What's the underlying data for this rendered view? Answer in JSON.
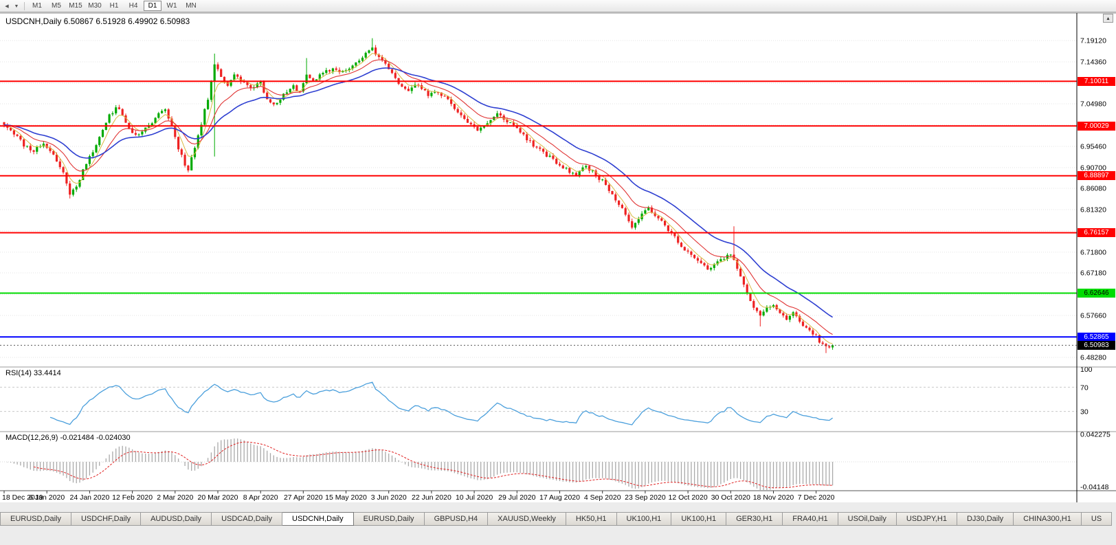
{
  "toolbar": {
    "timeframes": [
      "M1",
      "M5",
      "M15",
      "M30",
      "H1",
      "H4",
      "D1",
      "W1",
      "MN"
    ],
    "active": "D1",
    "icons": [
      {
        "name": "scroll-left-icon",
        "glyph": "◀"
      },
      {
        "name": "dropdown-icon",
        "glyph": "▼"
      }
    ]
  },
  "chart": {
    "symbol": "USDCNH",
    "period": "Daily",
    "title_line": "USDCNH,Daily 6.50867 6.51928 6.49902 6.50983",
    "ohlc": {
      "open": "6.50867",
      "high": "6.51928",
      "low": "6.49902",
      "close": "6.50983"
    }
  },
  "panels": {
    "rsi_label": "RSI(14) 33.4414",
    "macd_label": "MACD(12,26,9) -0.021484 -0.024030"
  },
  "misc": {
    "scroll_top_icon": "▴"
  },
  "chart_data": {
    "type": "candlestick",
    "symbol": "USDCNH",
    "timeframe": "Daily",
    "count": 253,
    "seed": 11,
    "noise": 0.009,
    "last_close": 6.50983,
    "current_price": 6.50983,
    "current_price_label": "6.50983",
    "anchors": [
      [
        0,
        7.005
      ],
      [
        3,
        6.985
      ],
      [
        6,
        6.958
      ],
      [
        9,
        6.945
      ],
      [
        12,
        6.962
      ],
      [
        15,
        6.935
      ],
      [
        18,
        6.895
      ],
      [
        20,
        6.85
      ],
      [
        22,
        6.862
      ],
      [
        24,
        6.905
      ],
      [
        26,
        6.932
      ],
      [
        29,
        6.972
      ],
      [
        32,
        7.022
      ],
      [
        34,
        7.043
      ],
      [
        36,
        7.028
      ],
      [
        38,
        6.992
      ],
      [
        41,
        6.978
      ],
      [
        44,
        7.0
      ],
      [
        47,
        7.028
      ],
      [
        49,
        7.038
      ],
      [
        51,
        7.0
      ],
      [
        53,
        6.952
      ],
      [
        55,
        6.915
      ],
      [
        56,
        6.905
      ],
      [
        58,
        6.952
      ],
      [
        60,
        7.005
      ],
      [
        62,
        7.062
      ],
      [
        64,
        7.142
      ],
      [
        66,
        7.112
      ],
      [
        68,
        7.088
      ],
      [
        70,
        7.118
      ],
      [
        72,
        7.102
      ],
      [
        75,
        7.088
      ],
      [
        78,
        7.096
      ],
      [
        80,
        7.062
      ],
      [
        82,
        7.046
      ],
      [
        85,
        7.068
      ],
      [
        88,
        7.088
      ],
      [
        90,
        7.076
      ],
      [
        92,
        7.118
      ],
      [
        94,
        7.098
      ],
      [
        97,
        7.118
      ],
      [
        100,
        7.128
      ],
      [
        103,
        7.122
      ],
      [
        106,
        7.135
      ],
      [
        109,
        7.152
      ],
      [
        111,
        7.168
      ],
      [
        112,
        7.175
      ],
      [
        114,
        7.152
      ],
      [
        117,
        7.13
      ],
      [
        120,
        7.098
      ],
      [
        123,
        7.082
      ],
      [
        126,
        7.092
      ],
      [
        129,
        7.068
      ],
      [
        132,
        7.076
      ],
      [
        135,
        7.06
      ],
      [
        138,
        7.032
      ],
      [
        141,
        7.008
      ],
      [
        144,
        6.992
      ],
      [
        147,
        7.005
      ],
      [
        150,
        7.026
      ],
      [
        153,
        7.012
      ],
      [
        156,
        6.995
      ],
      [
        159,
        6.972
      ],
      [
        162,
        6.95
      ],
      [
        165,
        6.935
      ],
      [
        168,
        6.918
      ],
      [
        171,
        6.902
      ],
      [
        174,
        6.892
      ],
      [
        177,
        6.91
      ],
      [
        180,
        6.892
      ],
      [
        183,
        6.868
      ],
      [
        186,
        6.838
      ],
      [
        189,
        6.805
      ],
      [
        191,
        6.775
      ],
      [
        193,
        6.795
      ],
      [
        196,
        6.818
      ],
      [
        199,
        6.792
      ],
      [
        202,
        6.768
      ],
      [
        205,
        6.742
      ],
      [
        208,
        6.718
      ],
      [
        211,
        6.698
      ],
      [
        214,
        6.678
      ],
      [
        217,
        6.695
      ],
      [
        220,
        6.712
      ],
      [
        222,
        6.705
      ],
      [
        224,
        6.662
      ],
      [
        226,
        6.622
      ],
      [
        228,
        6.598
      ],
      [
        230,
        6.572
      ],
      [
        232,
        6.59
      ],
      [
        234,
        6.602
      ],
      [
        236,
        6.582
      ],
      [
        238,
        6.568
      ],
      [
        240,
        6.584
      ],
      [
        242,
        6.562
      ],
      [
        244,
        6.548
      ],
      [
        246,
        6.536
      ],
      [
        248,
        6.52
      ],
      [
        250,
        6.505
      ],
      [
        252,
        6.50983
      ]
    ],
    "wick_events": [
      {
        "i": 20,
        "low": 6.838
      },
      {
        "i": 64,
        "low": 6.932,
        "high": 7.162
      },
      {
        "i": 92,
        "high": 7.152
      },
      {
        "i": 112,
        "high": 7.1965
      },
      {
        "i": 222,
        "high": 6.776
      },
      {
        "i": 230,
        "low": 6.552
      },
      {
        "i": 250,
        "low": 6.4925
      }
    ],
    "grid_values": [
      7.1912,
      7.1436,
      7.096,
      7.0498,
      7.0022,
      6.9546,
      6.907,
      6.8608,
      6.8132,
      6.7656,
      6.718,
      6.6718,
      6.6242,
      6.5766,
      6.529,
      6.4828
    ],
    "axis_labels": [
      "7.19120",
      "7.14360",
      "7.04980",
      "6.95460",
      "6.90700",
      "6.86080",
      "6.81320",
      "6.71800",
      "6.67180",
      "6.57660",
      "6.48280"
    ],
    "levels": [
      {
        "value": 7.10011,
        "label": "7.10011",
        "color": "#FF0000"
      },
      {
        "value": 7.00029,
        "label": "7.00029",
        "color": "#FF0000"
      },
      {
        "value": 6.88897,
        "label": "6.88897",
        "color": "#FF0000"
      },
      {
        "value": 6.76157,
        "label": "6.76157",
        "color": "#FF0000"
      },
      {
        "value": 6.62646,
        "label": "6.62646",
        "color": "#00DC00",
        "text_color": "#000000"
      },
      {
        "value": 6.52865,
        "label": "6.52865",
        "color": "#0000FF"
      }
    ],
    "date_labels": [
      [
        0,
        "18 Dec 2019"
      ],
      [
        13,
        "6 Jan 2020"
      ],
      [
        26,
        "24 Jan 2020"
      ],
      [
        39,
        "12 Feb 2020"
      ],
      [
        52,
        "2 Mar 2020"
      ],
      [
        65,
        "20 Mar 2020"
      ],
      [
        78,
        "8 Apr 2020"
      ],
      [
        91,
        "27 Apr 2020"
      ],
      [
        104,
        "15 May 2020"
      ],
      [
        117,
        "3 Jun 2020"
      ],
      [
        130,
        "22 Jun 2020"
      ],
      [
        143,
        "10 Jul 2020"
      ],
      [
        156,
        "29 Jul 2020"
      ],
      [
        169,
        "17 Aug 2020"
      ],
      [
        182,
        "4 Sep 2020"
      ],
      [
        195,
        "23 Sep 2020"
      ],
      [
        208,
        "12 Oct 2020"
      ],
      [
        221,
        "30 Oct 2020"
      ],
      [
        234,
        "18 Nov 2020"
      ],
      [
        247,
        "7 Dec 2020"
      ]
    ],
    "indicators": {
      "ma": [
        {
          "name": "ma-fast-line",
          "period": 5,
          "color": "#D9B840",
          "width": 1
        },
        {
          "name": "ma-mid-line",
          "period": 13,
          "color": "#E03333",
          "width": 1.1
        },
        {
          "name": "ma-slow-line",
          "period": 28,
          "color": "#2E3FD1",
          "width": 1.6
        }
      ],
      "rsi": {
        "period": 14,
        "value": 33.4414,
        "level_lines": [
          70,
          30
        ],
        "scale_labels": [
          [
            "100",
            100
          ],
          [
            "70",
            70
          ],
          [
            "30",
            30
          ]
        ]
      },
      "macd": {
        "fast": 12,
        "slow": 26,
        "signal": 9,
        "values": [
          "-0.021484",
          "-0.024030"
        ],
        "scale_max": {
          "text": "0.042275",
          "value": 0.042275
        },
        "scale_min": {
          "text": "-0.04148",
          "value": -0.04148
        }
      }
    },
    "colors": {
      "up": "#00AA00",
      "down": "#EE2222",
      "rsi": "#4A9FDC",
      "macd_hist": "#A9A9A9",
      "macd_signal": "#E02020",
      "grid": "#E3E3E3"
    }
  },
  "tab_bar": {
    "active_index": 4,
    "tabs": [
      {
        "label": "EURUSD,Daily"
      },
      {
        "label": "USDCHF,Daily"
      },
      {
        "label": "AUDUSD,Daily"
      },
      {
        "label": "USDCAD,Daily"
      },
      {
        "label": "USDCNH,Daily"
      },
      {
        "label": "EURUSD,Daily"
      },
      {
        "label": "GBPUSD,H4"
      },
      {
        "label": "XAUUSD,Weekly"
      },
      {
        "label": "HK50,H1"
      },
      {
        "label": "UK100,H1"
      },
      {
        "label": "UK100,H1"
      },
      {
        "label": "GER30,H1"
      },
      {
        "label": "FRA40,H1"
      },
      {
        "label": "USOil,Daily"
      },
      {
        "label": "USDJPY,H1"
      },
      {
        "label": "DJ30,Daily"
      },
      {
        "label": "CHINA300,H1"
      },
      {
        "label": "US"
      }
    ]
  }
}
